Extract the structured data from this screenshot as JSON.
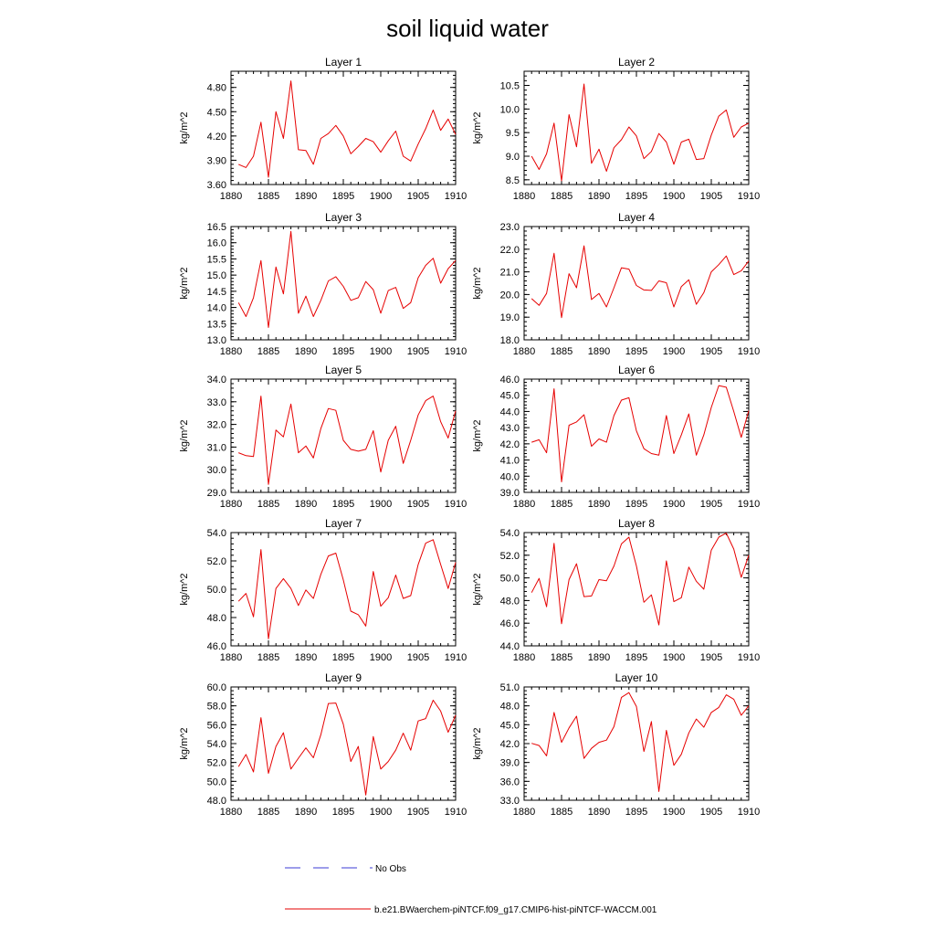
{
  "figure": {
    "title": "soil liquid water",
    "legend": {
      "obs_label": "No Obs",
      "model_label": "b.e21.BWaerchem-piNTCF.f09_g17.CMIP6-hist-piNTCF-WACCM.001",
      "obs_color": "#3b3bd6",
      "model_color": "#e60000"
    }
  },
  "chart_data": [
    {
      "type": "line",
      "title": "Layer 1",
      "ylabel": "kg/m^2",
      "xlim": [
        1880,
        1910
      ],
      "xticks": [
        1880,
        1885,
        1890,
        1895,
        1900,
        1905,
        1910
      ],
      "ylim": [
        3.6,
        5.0
      ],
      "yticks": [
        3.6,
        3.9,
        4.2,
        4.5,
        4.8
      ],
      "yminor": 0.05,
      "ydecimals": 2,
      "series": [
        {
          "x": [
            1881,
            1882,
            1883,
            1884,
            1885,
            1886,
            1887,
            1888,
            1889,
            1890,
            1891,
            1892,
            1893,
            1894,
            1895,
            1896,
            1897,
            1898,
            1899,
            1900,
            1901,
            1902,
            1903,
            1904,
            1905,
            1906,
            1907,
            1908,
            1909,
            1910
          ],
          "y": [
            3.85,
            3.81,
            3.95,
            4.37,
            3.69,
            4.5,
            4.17,
            4.88,
            4.03,
            4.02,
            3.85,
            4.17,
            4.23,
            4.33,
            4.2,
            3.98,
            4.07,
            4.17,
            4.13,
            4.0,
            4.14,
            4.26,
            3.95,
            3.89,
            4.1,
            4.29,
            4.52,
            4.27,
            4.41,
            4.22
          ]
        }
      ]
    },
    {
      "type": "line",
      "title": "Layer 2",
      "ylabel": "kg/m^2",
      "xlim": [
        1880,
        1910
      ],
      "xticks": [
        1880,
        1885,
        1890,
        1895,
        1900,
        1905,
        1910
      ],
      "ylim": [
        8.4,
        10.8
      ],
      "yticks": [
        8.5,
        9.0,
        9.5,
        10.0,
        10.5
      ],
      "yminor": 0.1,
      "ydecimals": 1,
      "series": [
        {
          "x": [
            1881,
            1882,
            1883,
            1884,
            1885,
            1886,
            1887,
            1888,
            1889,
            1890,
            1891,
            1892,
            1893,
            1894,
            1895,
            1896,
            1897,
            1898,
            1899,
            1900,
            1901,
            1902,
            1903,
            1904,
            1905,
            1906,
            1907,
            1908,
            1909,
            1910
          ],
          "y": [
            9.0,
            8.72,
            9.05,
            9.7,
            8.48,
            9.88,
            9.2,
            10.53,
            8.85,
            9.15,
            8.68,
            9.18,
            9.35,
            9.62,
            9.43,
            8.95,
            9.1,
            9.48,
            9.3,
            8.83,
            9.3,
            9.36,
            8.93,
            8.95,
            9.45,
            9.85,
            9.98,
            9.4,
            9.62,
            9.7
          ]
        }
      ]
    },
    {
      "type": "line",
      "title": "Layer 3",
      "ylabel": "kg/m^2",
      "xlim": [
        1880,
        1910
      ],
      "xticks": [
        1880,
        1885,
        1890,
        1895,
        1900,
        1905,
        1910
      ],
      "ylim": [
        13.0,
        16.5
      ],
      "yticks": [
        13.0,
        13.5,
        14.0,
        14.5,
        15.0,
        15.5,
        16.0,
        16.5
      ],
      "yminor": 0.1,
      "ydecimals": 1,
      "series": [
        {
          "x": [
            1881,
            1882,
            1883,
            1884,
            1885,
            1886,
            1887,
            1888,
            1889,
            1890,
            1891,
            1892,
            1893,
            1894,
            1895,
            1896,
            1897,
            1898,
            1899,
            1900,
            1901,
            1902,
            1903,
            1904,
            1905,
            1906,
            1907,
            1908,
            1909,
            1910
          ],
          "y": [
            14.15,
            13.72,
            14.3,
            15.45,
            13.38,
            15.25,
            14.42,
            16.35,
            13.82,
            14.35,
            13.72,
            14.22,
            14.82,
            14.95,
            14.65,
            14.22,
            14.3,
            14.8,
            14.55,
            13.82,
            14.52,
            14.62,
            13.97,
            14.15,
            14.92,
            15.3,
            15.52,
            14.75,
            15.2,
            15.45
          ]
        }
      ]
    },
    {
      "type": "line",
      "title": "Layer 4",
      "ylabel": "kg/m^2",
      "xlim": [
        1880,
        1910
      ],
      "xticks": [
        1880,
        1885,
        1890,
        1895,
        1900,
        1905,
        1910
      ],
      "ylim": [
        18.0,
        23.0
      ],
      "yticks": [
        18.0,
        19.0,
        20.0,
        21.0,
        22.0,
        23.0
      ],
      "yminor": 0.2,
      "ydecimals": 1,
      "series": [
        {
          "x": [
            1881,
            1882,
            1883,
            1884,
            1885,
            1886,
            1887,
            1888,
            1889,
            1890,
            1891,
            1892,
            1893,
            1894,
            1895,
            1896,
            1897,
            1898,
            1899,
            1900,
            1901,
            1902,
            1903,
            1904,
            1905,
            1906,
            1907,
            1908,
            1909,
            1910
          ],
          "y": [
            19.82,
            19.52,
            20.05,
            21.82,
            18.98,
            20.92,
            20.3,
            22.15,
            19.78,
            20.05,
            19.45,
            20.3,
            21.18,
            21.12,
            20.4,
            20.2,
            20.18,
            20.6,
            20.52,
            19.45,
            20.35,
            20.65,
            19.57,
            20.08,
            21.0,
            21.32,
            21.7,
            20.88,
            21.05,
            21.48
          ]
        }
      ]
    },
    {
      "type": "line",
      "title": "Layer 5",
      "ylabel": "kg/m^2",
      "xlim": [
        1880,
        1910
      ],
      "xticks": [
        1880,
        1885,
        1890,
        1895,
        1900,
        1905,
        1910
      ],
      "ylim": [
        29.0,
        34.0
      ],
      "yticks": [
        29.0,
        30.0,
        31.0,
        32.0,
        33.0,
        34.0
      ],
      "yminor": 0.2,
      "ydecimals": 1,
      "series": [
        {
          "x": [
            1881,
            1882,
            1883,
            1884,
            1885,
            1886,
            1887,
            1888,
            1889,
            1890,
            1891,
            1892,
            1893,
            1894,
            1895,
            1896,
            1897,
            1898,
            1899,
            1900,
            1901,
            1902,
            1903,
            1904,
            1905,
            1906,
            1907,
            1908,
            1909,
            1910
          ],
          "y": [
            30.75,
            30.62,
            30.58,
            33.25,
            29.35,
            31.75,
            31.45,
            32.9,
            30.75,
            31.05,
            30.52,
            31.82,
            32.7,
            32.62,
            31.3,
            30.9,
            30.82,
            30.9,
            31.72,
            29.9,
            31.3,
            31.92,
            30.28,
            31.3,
            32.42,
            33.05,
            33.25,
            32.12,
            31.4,
            32.6
          ]
        }
      ]
    },
    {
      "type": "line",
      "title": "Layer 6",
      "ylabel": "kg/m^2",
      "xlim": [
        1880,
        1910
      ],
      "xticks": [
        1880,
        1885,
        1890,
        1895,
        1900,
        1905,
        1910
      ],
      "ylim": [
        39.0,
        46.0
      ],
      "yticks": [
        39.0,
        40.0,
        41.0,
        42.0,
        43.0,
        44.0,
        45.0,
        46.0
      ],
      "yminor": 0.2,
      "ydecimals": 1,
      "series": [
        {
          "x": [
            1881,
            1882,
            1883,
            1884,
            1885,
            1886,
            1887,
            1888,
            1889,
            1890,
            1891,
            1892,
            1893,
            1894,
            1895,
            1896,
            1897,
            1898,
            1899,
            1900,
            1901,
            1902,
            1903,
            1904,
            1905,
            1906,
            1907,
            1908,
            1909,
            1910
          ],
          "y": [
            42.1,
            42.25,
            41.45,
            45.4,
            39.65,
            43.15,
            43.35,
            43.8,
            41.85,
            42.3,
            42.1,
            43.75,
            44.7,
            44.85,
            42.8,
            41.7,
            41.4,
            41.3,
            43.75,
            41.4,
            42.55,
            43.85,
            41.3,
            42.55,
            44.25,
            45.6,
            45.5,
            44.0,
            42.4,
            44.05
          ]
        }
      ]
    },
    {
      "type": "line",
      "title": "Layer 7",
      "ylabel": "kg/m^2",
      "xlim": [
        1880,
        1910
      ],
      "xticks": [
        1880,
        1885,
        1890,
        1895,
        1900,
        1905,
        1910
      ],
      "ylim": [
        46.0,
        54.0
      ],
      "yticks": [
        46.0,
        48.0,
        50.0,
        52.0,
        54.0
      ],
      "yminor": 0.4,
      "ydecimals": 1,
      "series": [
        {
          "x": [
            1881,
            1882,
            1883,
            1884,
            1885,
            1886,
            1887,
            1888,
            1889,
            1890,
            1891,
            1892,
            1893,
            1894,
            1895,
            1896,
            1897,
            1898,
            1899,
            1900,
            1901,
            1902,
            1903,
            1904,
            1905,
            1906,
            1907,
            1908,
            1909,
            1910
          ],
          "y": [
            49.15,
            49.7,
            48.05,
            52.8,
            46.5,
            50.05,
            50.75,
            50.05,
            48.85,
            49.95,
            49.35,
            51.05,
            52.35,
            52.55,
            50.65,
            48.45,
            48.2,
            47.4,
            51.25,
            48.8,
            49.4,
            51.0,
            49.35,
            49.55,
            51.75,
            53.25,
            53.5,
            51.75,
            50.05,
            51.9
          ]
        }
      ]
    },
    {
      "type": "line",
      "title": "Layer 8",
      "ylabel": "kg/m^2",
      "xlim": [
        1880,
        1910
      ],
      "xticks": [
        1880,
        1885,
        1890,
        1895,
        1900,
        1905,
        1910
      ],
      "ylim": [
        44.0,
        54.0
      ],
      "yticks": [
        44.0,
        46.0,
        48.0,
        50.0,
        52.0,
        54.0
      ],
      "yminor": 0.4,
      "ydecimals": 1,
      "series": [
        {
          "x": [
            1881,
            1882,
            1883,
            1884,
            1885,
            1886,
            1887,
            1888,
            1889,
            1890,
            1891,
            1892,
            1893,
            1894,
            1895,
            1896,
            1897,
            1898,
            1899,
            1900,
            1901,
            1902,
            1903,
            1904,
            1905,
            1906,
            1907,
            1908,
            1909,
            1910
          ],
          "y": [
            48.7,
            49.95,
            47.45,
            53.05,
            45.95,
            49.85,
            51.25,
            48.35,
            48.4,
            49.85,
            49.75,
            51.05,
            53.0,
            53.6,
            51.05,
            47.85,
            48.5,
            45.85,
            51.5,
            47.9,
            48.25,
            50.95,
            49.7,
            49.0,
            52.45,
            53.6,
            53.95,
            52.55,
            50.05,
            52.0
          ]
        }
      ]
    },
    {
      "type": "line",
      "title": "Layer 9",
      "ylabel": "kg/m^2",
      "xlim": [
        1880,
        1910
      ],
      "xticks": [
        1880,
        1885,
        1890,
        1895,
        1900,
        1905,
        1910
      ],
      "ylim": [
        48.0,
        60.0
      ],
      "yticks": [
        48.0,
        50.0,
        52.0,
        54.0,
        56.0,
        58.0,
        60.0
      ],
      "yminor": 0.4,
      "ydecimals": 1,
      "series": [
        {
          "x": [
            1881,
            1882,
            1883,
            1884,
            1885,
            1886,
            1887,
            1888,
            1889,
            1890,
            1891,
            1892,
            1893,
            1894,
            1895,
            1896,
            1897,
            1898,
            1899,
            1900,
            1901,
            1902,
            1903,
            1904,
            1905,
            1906,
            1907,
            1908,
            1909,
            1910
          ],
          "y": [
            51.55,
            52.85,
            51.0,
            56.75,
            50.85,
            53.7,
            55.15,
            51.3,
            52.45,
            53.55,
            52.5,
            54.95,
            58.25,
            58.3,
            56.05,
            52.1,
            53.7,
            48.55,
            54.75,
            51.3,
            52.1,
            53.3,
            55.1,
            53.3,
            56.4,
            56.65,
            58.6,
            57.45,
            55.2,
            57.0
          ]
        }
      ]
    },
    {
      "type": "line",
      "title": "Layer 10",
      "ylabel": "kg/m^2",
      "xlim": [
        1880,
        1910
      ],
      "xticks": [
        1880,
        1885,
        1890,
        1895,
        1900,
        1905,
        1910
      ],
      "ylim": [
        33.0,
        51.0
      ],
      "yticks": [
        33.0,
        36.0,
        39.0,
        42.0,
        45.0,
        48.0,
        51.0
      ],
      "yminor": 0.6,
      "ydecimals": 1,
      "series": [
        {
          "x": [
            1881,
            1882,
            1883,
            1884,
            1885,
            1886,
            1887,
            1888,
            1889,
            1890,
            1891,
            1892,
            1893,
            1894,
            1895,
            1896,
            1897,
            1898,
            1899,
            1900,
            1901,
            1902,
            1903,
            1904,
            1905,
            1906,
            1907,
            1908,
            1909,
            1910
          ],
          "y": [
            42.05,
            41.7,
            40.05,
            46.95,
            42.2,
            44.5,
            46.35,
            39.65,
            41.25,
            42.2,
            42.55,
            44.7,
            49.35,
            50.1,
            47.9,
            40.75,
            45.5,
            34.4,
            44.1,
            38.55,
            40.3,
            43.7,
            45.9,
            44.6,
            46.95,
            47.75,
            49.75,
            49.05,
            46.5,
            48.0
          ]
        }
      ]
    }
  ]
}
